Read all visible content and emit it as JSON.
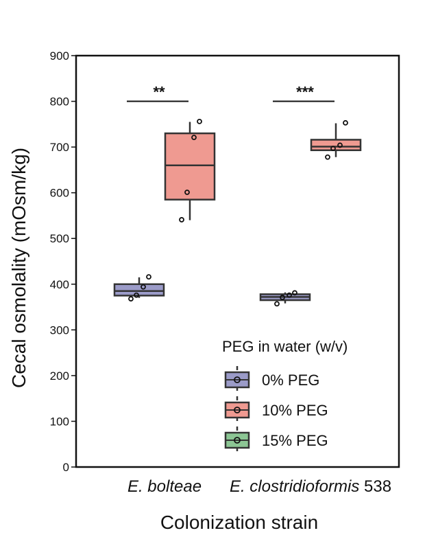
{
  "chart_data": {
    "type": "box",
    "ylabel": "Cecal osmolality (mOsm/kg)",
    "xlabel": "Colonization strain",
    "ylim": [
      0,
      900
    ],
    "yticks": [
      0,
      100,
      200,
      300,
      400,
      500,
      600,
      700,
      800,
      900
    ],
    "grid": false,
    "categories": [
      {
        "name": "E. bolteae",
        "suffix": ""
      },
      {
        "name": "E. clostridioformis",
        "suffix": " 538"
      }
    ],
    "legend": {
      "title": "PEG in water (w/v)",
      "placement": "bottom-right",
      "entries": [
        "0% PEG",
        "10% PEG",
        "15% PEG"
      ]
    },
    "series": [
      {
        "name": "0% PEG",
        "color": "#9b9bc8",
        "boxes": [
          {
            "category": "E. bolteae",
            "whisker_low": 370,
            "q1": 375,
            "median": 385,
            "q3": 400,
            "whisker_high": 415,
            "points": [
              368,
              376,
              394,
              416
            ]
          },
          {
            "category": "E. clostridioformis",
            "whisker_low": 358,
            "q1": 365,
            "median": 372,
            "q3": 378,
            "whisker_high": 382,
            "points": [
              357,
              371,
              376,
              381
            ]
          }
        ]
      },
      {
        "name": "10% PEG",
        "color": "#ef9a91",
        "boxes": [
          {
            "category": "E. bolteae",
            "whisker_low": 540,
            "q1": 585,
            "median": 660,
            "q3": 730,
            "whisker_high": 755,
            "points": [
              541,
              601,
              721,
              756
            ]
          },
          {
            "category": "E. clostridioformis",
            "whisker_low": 678,
            "q1": 693,
            "median": 701,
            "q3": 716,
            "whisker_high": 752,
            "points": [
              678,
              697,
              704,
              753
            ]
          }
        ]
      },
      {
        "name": "15% PEG",
        "color": "#8cc694",
        "boxes": []
      }
    ],
    "annotations": [
      {
        "category": "E. bolteae",
        "text": "**",
        "y": 800
      },
      {
        "category": "E. clostridioformis",
        "text": "***",
        "y": 800
      }
    ]
  }
}
